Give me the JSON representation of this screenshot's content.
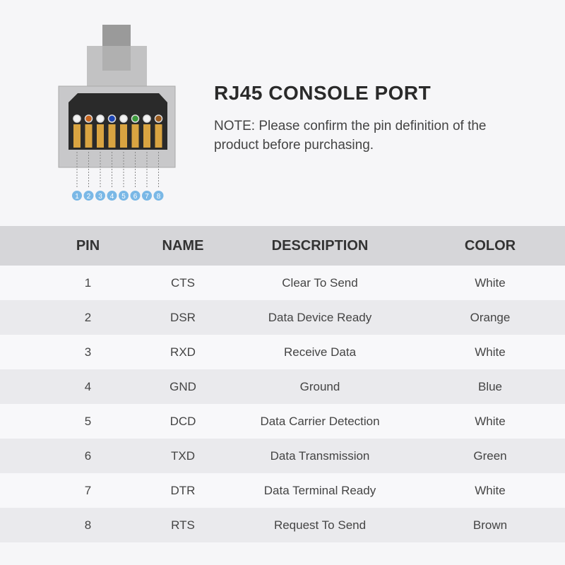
{
  "header": {
    "title": "RJ45 CONSOLE PORT",
    "note_label": "NOTE:",
    "note_text": " Please confirm the pin definition of the product before purchasing."
  },
  "connector": {
    "pin_numbers": [
      "1",
      "2",
      "3",
      "4",
      "5",
      "6",
      "7",
      "8"
    ],
    "wire_colors": [
      "#f2f2f2",
      "#c8641e",
      "#f2f2f2",
      "#1e46b4",
      "#f2f2f2",
      "#3c9a3c",
      "#f2f2f2",
      "#9a5a1e"
    ],
    "badge_color": "#7ab8e6"
  },
  "table": {
    "headers": [
      "PIN",
      "NAME",
      "DESCRIPTION",
      "COLOR"
    ],
    "rows": [
      [
        "1",
        "CTS",
        "Clear To Send",
        "White"
      ],
      [
        "2",
        "DSR",
        "Data Device Ready",
        "Orange"
      ],
      [
        "3",
        "RXD",
        "Receive Data",
        "White"
      ],
      [
        "4",
        "GND",
        "Ground",
        "Blue"
      ],
      [
        "5",
        "DCD",
        "Data Carrier Detection",
        "White"
      ],
      [
        "6",
        "TXD",
        "Data Transmission",
        "Green"
      ],
      [
        "7",
        "DTR",
        "Data Terminal Ready",
        "White"
      ],
      [
        "8",
        "RTS",
        "Request To Send",
        "Brown"
      ]
    ]
  }
}
